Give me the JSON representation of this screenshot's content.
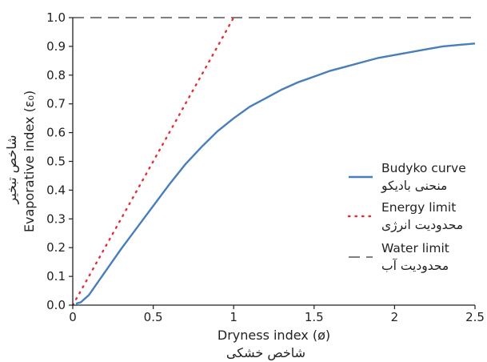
{
  "chart_data": {
    "type": "line",
    "xlabel": "Dryness index (ø)",
    "xlabel_fa": "شاخص خشکی",
    "ylabel": "Evaporative index (ε₀)",
    "ylabel_fa": "شاخص تبخیر",
    "xlim": [
      0,
      2.5
    ],
    "ylim": [
      0,
      1.0
    ],
    "x_ticks": [
      "0",
      "0.5",
      "1",
      "1.5",
      "2",
      "2.5"
    ],
    "x_tick_values": [
      0,
      0.5,
      1,
      1.5,
      2,
      2.5
    ],
    "y_ticks": [
      "0.0",
      "0.1",
      "0.2",
      "0.3",
      "0.4",
      "0.5",
      "0.6",
      "0.7",
      "0.8",
      "0.9",
      "1.0"
    ],
    "y_tick_values": [
      0,
      0.1,
      0.2,
      0.3,
      0.4,
      0.5,
      0.6,
      0.7,
      0.8,
      0.9,
      1.0
    ],
    "grid": false,
    "legend_position": "right",
    "series": [
      {
        "name": "Budyko curve",
        "name_fa": "منحنی بادیکو",
        "style": "solid",
        "color": "#4a7ebb",
        "x": [
          0.02,
          0.05,
          0.1,
          0.15,
          0.2,
          0.3,
          0.4,
          0.5,
          0.6,
          0.7,
          0.8,
          0.9,
          1.0,
          1.1,
          1.2,
          1.3,
          1.4,
          1.5,
          1.6,
          1.7,
          1.8,
          1.9,
          2.0,
          2.1,
          2.2,
          2.3,
          2.4,
          2.5
        ],
        "y": [
          0.005,
          0.01,
          0.035,
          0.075,
          0.115,
          0.195,
          0.27,
          0.345,
          0.42,
          0.49,
          0.55,
          0.605,
          0.65,
          0.69,
          0.72,
          0.75,
          0.775,
          0.795,
          0.815,
          0.83,
          0.845,
          0.86,
          0.87,
          0.88,
          0.89,
          0.9,
          0.905,
          0.91
        ]
      },
      {
        "name": "Energy limit",
        "name_fa": "محدودیت انرژی",
        "style": "dotted",
        "color": "#e0303a",
        "x": [
          0,
          1.0
        ],
        "y": [
          0,
          1.0
        ]
      },
      {
        "name": "Water limit",
        "name_fa": "محدودیت آب",
        "style": "dashed",
        "color": "#555555",
        "x": [
          0,
          2.5
        ],
        "y": [
          1.0,
          1.0
        ]
      }
    ]
  }
}
